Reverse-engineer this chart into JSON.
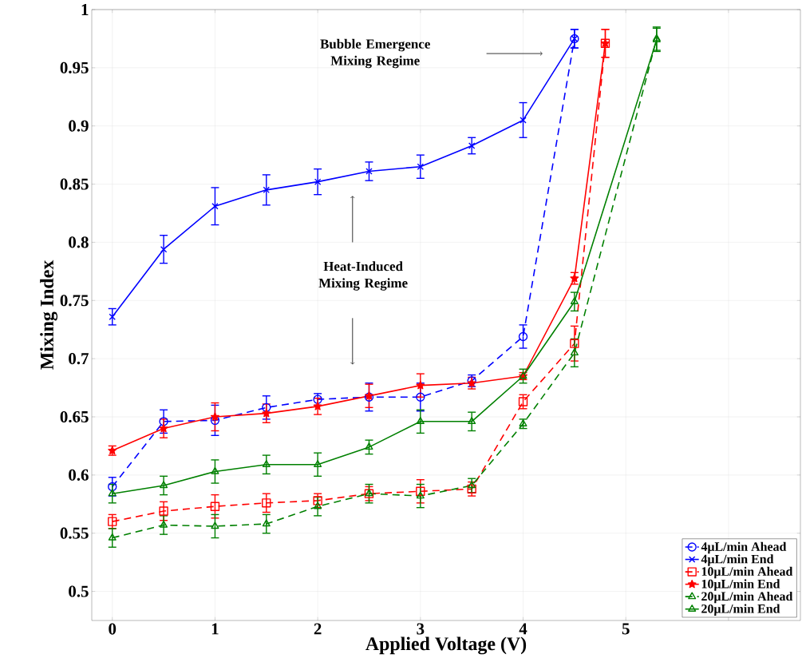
{
  "chart_data": {
    "type": "line",
    "xlabel": "Applied Voltage (V)",
    "ylabel": "Mixing Index",
    "xlim": [
      -0.2,
      6.7
    ],
    "ylim": [
      0.475,
      1
    ],
    "xticks": [
      0,
      1,
      2,
      3,
      4,
      5,
      {
        "value": 6,
        "label": null
      }
    ],
    "yticks": [
      0.5,
      0.55,
      0.6,
      0.65,
      0.7,
      0.75,
      0.8,
      0.85,
      0.9,
      0.95,
      1
    ],
    "grid": true,
    "legend": "bottom right",
    "series": [
      {
        "name": "4μL/min Ahead",
        "color": "#0000ff",
        "marker": "circle",
        "line_style": "dashed",
        "x": [
          0,
          0.5,
          1,
          1.5,
          2,
          2.5,
          3,
          3.5,
          4,
          4.5
        ],
        "values": [
          0.59,
          0.646,
          0.647,
          0.658,
          0.665,
          0.667,
          0.667,
          0.681,
          0.719,
          0.975
        ],
        "errors": [
          0.008,
          0.01,
          0.013,
          0.01,
          0.005,
          0.012,
          0.012,
          0.005,
          0.01,
          0.008
        ]
      },
      {
        "name": "4μL/min End",
        "color": "#0000ff",
        "marker": "cross",
        "line_style": "solid",
        "x": [
          0,
          0.5,
          1,
          1.5,
          2,
          2.5,
          3,
          3.5,
          4,
          4.5
        ],
        "values": [
          0.736,
          0.794,
          0.831,
          0.845,
          0.852,
          0.861,
          0.865,
          0.883,
          0.905,
          0.975
        ],
        "errors": [
          0.007,
          0.012,
          0.016,
          0.013,
          0.011,
          0.008,
          0.01,
          0.007,
          0.015,
          0.008
        ]
      },
      {
        "name": "10μL/min Ahead",
        "color": "#ff0000",
        "marker": "square",
        "line_style": "dashed",
        "x": [
          0,
          0.5,
          1,
          1.5,
          2,
          2.5,
          3,
          3.5,
          4,
          4.5,
          4.8
        ],
        "values": [
          0.56,
          0.569,
          0.573,
          0.576,
          0.578,
          0.584,
          0.586,
          0.588,
          0.663,
          0.713,
          0.971
        ],
        "errors": [
          0.006,
          0.008,
          0.01,
          0.008,
          0.006,
          0.006,
          0.01,
          0.006,
          0.006,
          0.015,
          0.012
        ]
      },
      {
        "name": "10μL/min End",
        "color": "#ff0000",
        "marker": "star",
        "line_style": "solid",
        "x": [
          0,
          0.5,
          1,
          1.5,
          2,
          2.5,
          3,
          3.5,
          4,
          4.5,
          4.8
        ],
        "values": [
          0.621,
          0.64,
          0.65,
          0.653,
          0.659,
          0.668,
          0.677,
          0.679,
          0.685,
          0.769,
          0.971
        ],
        "errors": [
          0.004,
          0.008,
          0.012,
          0.008,
          0.007,
          0.01,
          0.01,
          0.005,
          0.003,
          0.005,
          0.012
        ]
      },
      {
        "name": "20μL/min Ahead",
        "color": "#008000",
        "marker": "triangle",
        "line_style": "dashed",
        "x": [
          0,
          0.5,
          1,
          1.5,
          2,
          2.5,
          3,
          3.5,
          4,
          4.5,
          5.3
        ],
        "values": [
          0.546,
          0.557,
          0.556,
          0.558,
          0.573,
          0.584,
          0.582,
          0.591,
          0.644,
          0.705,
          0.975
        ],
        "errors": [
          0.008,
          0.008,
          0.01,
          0.008,
          0.008,
          0.008,
          0.01,
          0.006,
          0.004,
          0.012,
          0.01
        ]
      },
      {
        "name": "20μL/min End",
        "color": "#008000",
        "marker": "triangle",
        "line_style": "solid",
        "x": [
          0,
          0.5,
          1,
          1.5,
          2,
          2.5,
          3,
          3.5,
          4,
          4.5,
          5.3
        ],
        "values": [
          0.584,
          0.591,
          0.603,
          0.609,
          0.609,
          0.624,
          0.646,
          0.646,
          0.685,
          0.749,
          0.974
        ],
        "errors": [
          0.008,
          0.008,
          0.01,
          0.008,
          0.01,
          0.006,
          0.01,
          0.008,
          0.006,
          0.008,
          0.01
        ]
      }
    ],
    "annotations": [
      "Bubble Emergence Mixing Regime",
      "Heat-Induced Mixing Regime"
    ]
  }
}
